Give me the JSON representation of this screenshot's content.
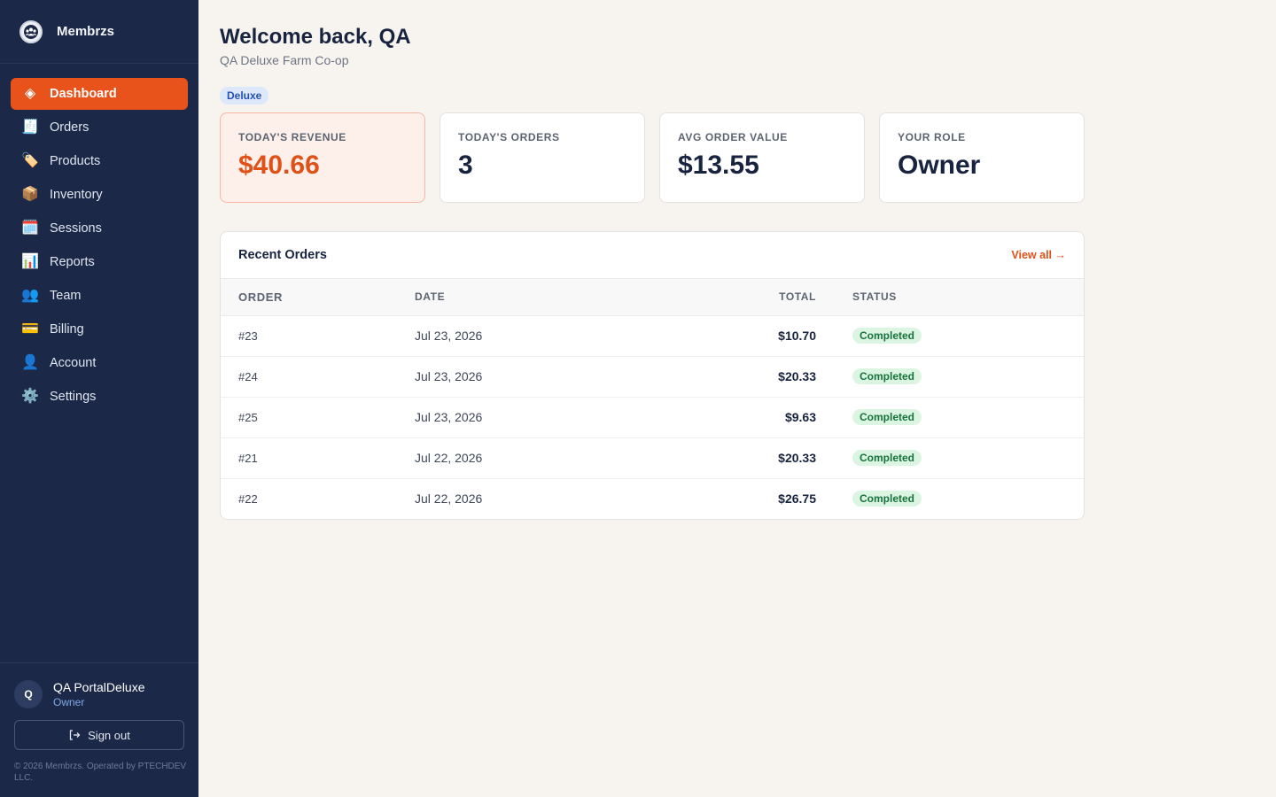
{
  "app": {
    "name": "Membrzs",
    "logo_icon": "people-group-icon"
  },
  "sidebar": {
    "items": [
      {
        "label": "Dashboard",
        "icon": "◈",
        "icon_name": "diamond-icon",
        "active": true
      },
      {
        "label": "Orders",
        "icon": "🧾",
        "icon_name": "receipt-icon"
      },
      {
        "label": "Products",
        "icon": "🏷️",
        "icon_name": "tag-icon"
      },
      {
        "label": "Inventory",
        "icon": "📦",
        "icon_name": "box-icon"
      },
      {
        "label": "Sessions",
        "icon": "🗓️",
        "icon_name": "calendar-icon"
      },
      {
        "label": "Reports",
        "icon": "📊",
        "icon_name": "bar-chart-icon"
      },
      {
        "label": "Team",
        "icon": "👥",
        "icon_name": "team-icon"
      },
      {
        "label": "Billing",
        "icon": "💳",
        "icon_name": "credit-card-icon"
      },
      {
        "label": "Account",
        "icon": "👤",
        "icon_name": "user-icon"
      },
      {
        "label": "Settings",
        "icon": "⚙️",
        "icon_name": "gear-icon"
      }
    ]
  },
  "user": {
    "initial": "Q",
    "name": "QA PortalDeluxe",
    "role": "Owner",
    "signout_label": "Sign out",
    "copyright": "© 2026 Membrzs. Operated by PTECHDEV LLC."
  },
  "header": {
    "title": "Welcome back, QA",
    "subtitle": "QA Deluxe Farm Co-op",
    "tier_badge": "Deluxe"
  },
  "stats": [
    {
      "label": "TODAY'S REVENUE",
      "value": "$40.66",
      "highlight": true
    },
    {
      "label": "TODAY'S ORDERS",
      "value": "3"
    },
    {
      "label": "AVG ORDER VALUE",
      "value": "$13.55"
    },
    {
      "label": "YOUR ROLE",
      "value": "Owner"
    }
  ],
  "recent_orders": {
    "title": "Recent Orders",
    "view_all": "View all →",
    "columns": {
      "order": "ORDER",
      "date": "DATE",
      "total": "TOTAL",
      "status": "STATUS"
    },
    "rows": [
      {
        "order": "#23",
        "date": "Jul 23, 2026",
        "total": "$10.70",
        "status": "Completed"
      },
      {
        "order": "#24",
        "date": "Jul 23, 2026",
        "total": "$20.33",
        "status": "Completed"
      },
      {
        "order": "#25",
        "date": "Jul 23, 2026",
        "total": "$9.63",
        "status": "Completed"
      },
      {
        "order": "#21",
        "date": "Jul 22, 2026",
        "total": "$20.33",
        "status": "Completed"
      },
      {
        "order": "#22",
        "date": "Jul 22, 2026",
        "total": "$26.75",
        "status": "Completed"
      }
    ]
  },
  "colors": {
    "sidebar_bg": "#1b2847",
    "accent": "#e8531c",
    "page_bg": "#f7f4ef",
    "status_completed_bg": "#dcf5e3",
    "status_completed_text": "#17733a"
  }
}
